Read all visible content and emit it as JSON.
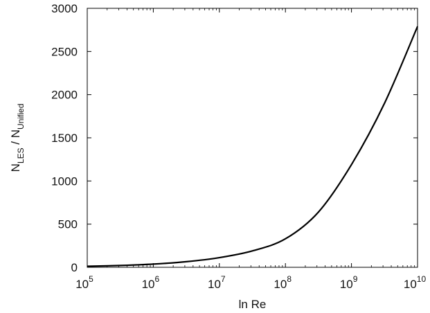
{
  "chart_data": {
    "type": "line",
    "xscale": "log",
    "x_ticks": [
      {
        "value": 100000,
        "base": "10",
        "exp": "5"
      },
      {
        "value": 1000000,
        "base": "10",
        "exp": "6"
      },
      {
        "value": 10000000,
        "base": "10",
        "exp": "7"
      },
      {
        "value": 100000000,
        "base": "10",
        "exp": "8"
      },
      {
        "value": 1000000000,
        "base": "10",
        "exp": "9"
      },
      {
        "value": 10000000000,
        "base": "10",
        "exp": "10"
      }
    ],
    "y_ticks": [
      "0",
      "500",
      "1000",
      "1500",
      "2000",
      "2500",
      "3000"
    ],
    "xlim": [
      100000,
      10000000000
    ],
    "ylim": [
      0,
      3000
    ],
    "xlabel": "ln Re",
    "ylabel": {
      "main_1": "N",
      "sub_1": "LES",
      "sep": " / ",
      "main_2": "N",
      "sub_2": "Unified"
    },
    "grid": false,
    "series": [
      {
        "color": "#000000",
        "x": [
          100000,
          316228,
          1000000,
          3162278,
          10000000,
          31622777,
          100000000,
          316227766,
          1000000000,
          3162277660,
          10000000000
        ],
        "y": [
          12,
          21,
          37,
          65,
          112,
          190,
          330,
          640,
          1190,
          1900,
          2790
        ]
      }
    ]
  }
}
